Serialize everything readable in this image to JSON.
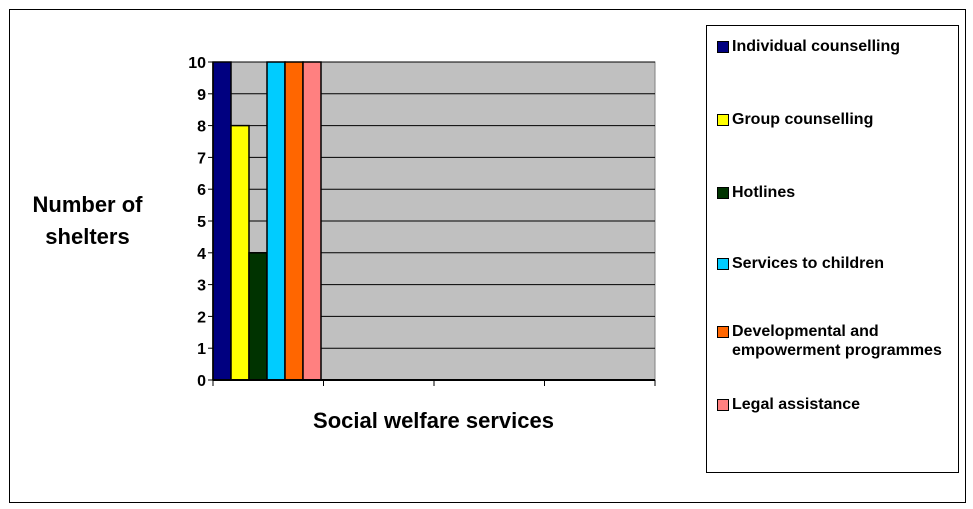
{
  "chart_data": {
    "type": "bar",
    "title": "",
    "xlabel": "Social welfare services",
    "ylabel": "Number of shelters",
    "ylim": [
      0,
      10
    ],
    "yticks": [
      "0",
      "1",
      "2",
      "3",
      "4",
      "5",
      "6",
      "7",
      "8",
      "9",
      "10"
    ],
    "grid": true,
    "legend_position": "right",
    "plot_background": "#c0c0c0",
    "series": [
      {
        "name": "Individual counselling",
        "value": 10,
        "color": "#000080"
      },
      {
        "name": "Group counselling",
        "value": 8,
        "color": "#ffff00"
      },
      {
        "name": "Hotlines",
        "value": 4,
        "color": "#003300"
      },
      {
        "name": "Services to children",
        "value": 10,
        "color": "#00ccff"
      },
      {
        "name": "Developmental and empowerment programmes",
        "value": 10,
        "color": "#ff6600"
      },
      {
        "name": "Legal assistance",
        "value": 10,
        "color": "#ff8080"
      }
    ]
  }
}
